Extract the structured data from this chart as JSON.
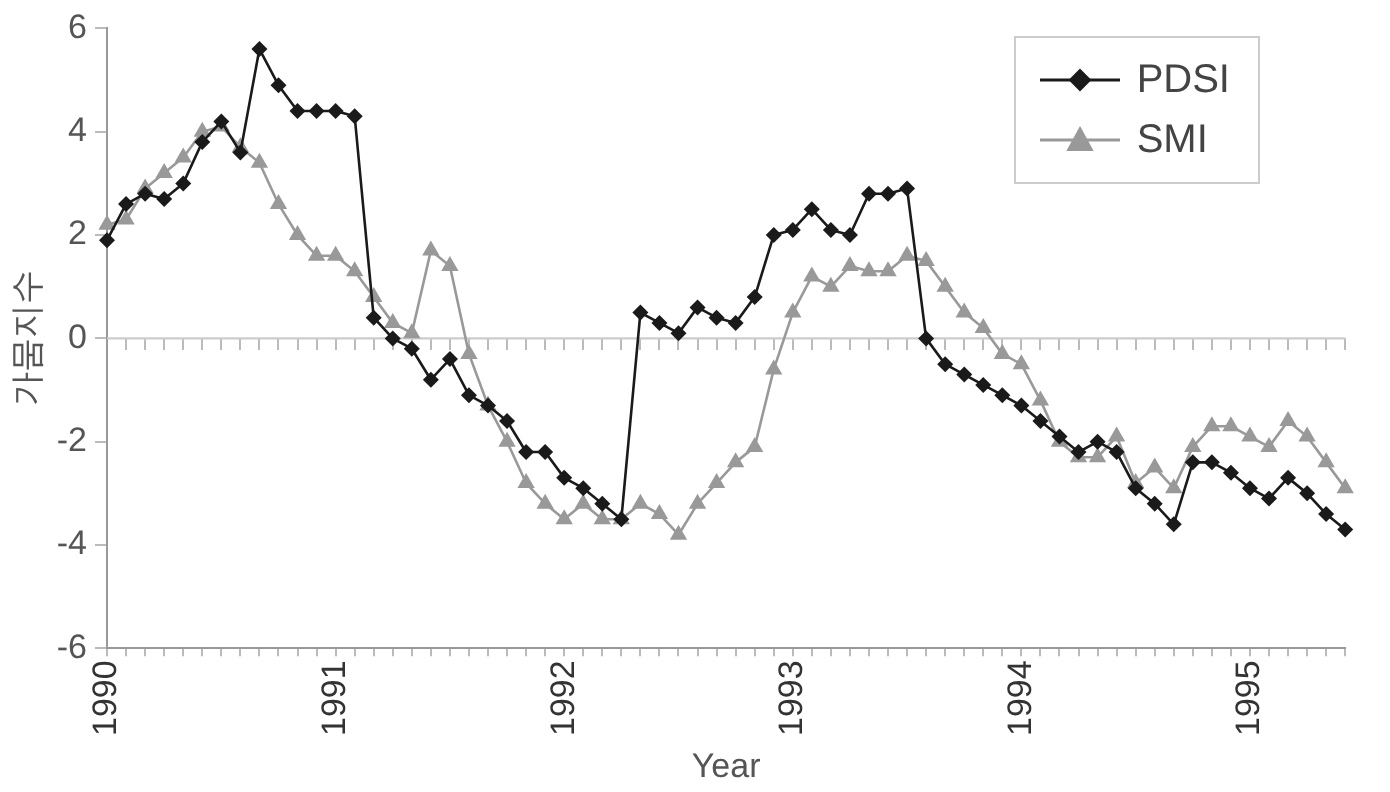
{
  "chart_data": {
    "type": "line",
    "xlabel": "Year",
    "ylabel": "가뭄지수",
    "categories": [
      "1990",
      null,
      null,
      null,
      null,
      null,
      null,
      null,
      null,
      null,
      null,
      null,
      "1991",
      null,
      null,
      null,
      null,
      null,
      null,
      null,
      null,
      null,
      null,
      null,
      "1992",
      null,
      null,
      null,
      null,
      null,
      null,
      null,
      null,
      null,
      null,
      null,
      "1993",
      null,
      null,
      null,
      null,
      null,
      null,
      null,
      null,
      null,
      null,
      null,
      "1994",
      null,
      null,
      null,
      null,
      null,
      null,
      null,
      null,
      null,
      null,
      null,
      "1995",
      null,
      null,
      null,
      null,
      null
    ],
    "ref_lines": [
      {
        "axis": "y",
        "value": 0,
        "color": "#cccccc"
      }
    ],
    "ylim": [
      -6,
      6
    ],
    "yticks": [
      -6,
      -4,
      -2,
      0,
      2,
      4,
      6
    ],
    "grid": false,
    "legend": "top right",
    "line_style": "solid",
    "series": [
      {
        "name": "PDSI",
        "color": "#1a1a1a",
        "marker": "diamond",
        "values": [
          1.9,
          2.6,
          2.8,
          2.7,
          3.0,
          3.8,
          4.2,
          3.6,
          5.6,
          4.9,
          4.4,
          4.4,
          4.4,
          4.3,
          0.4,
          0.0,
          -0.2,
          -0.8,
          -0.4,
          -1.1,
          -1.3,
          -1.6,
          -2.2,
          -2.2,
          -2.7,
          -2.9,
          -3.2,
          -3.5,
          0.5,
          0.3,
          0.1,
          0.6,
          0.4,
          0.3,
          0.8,
          2.0,
          2.1,
          2.5,
          2.1,
          2.0,
          2.8,
          2.8,
          2.9,
          0.0,
          -0.5,
          -0.7,
          -0.9,
          -1.1,
          -1.3,
          -1.6,
          -1.9,
          -2.2,
          -2.0,
          -2.2,
          -2.9,
          -3.2,
          -3.6,
          -2.4,
          -2.4,
          -2.6,
          -2.9,
          -3.1,
          -2.7,
          -3.0,
          -3.4,
          -3.7
        ]
      },
      {
        "name": "SMI",
        "color": "#999999",
        "marker": "triangle",
        "values": [
          2.2,
          2.3,
          2.9,
          3.2,
          3.5,
          4.0,
          4.1,
          3.7,
          3.4,
          2.6,
          2.0,
          1.6,
          1.6,
          1.3,
          0.8,
          0.3,
          0.1,
          1.7,
          1.4,
          -0.3,
          -1.3,
          -2.0,
          -2.8,
          -3.2,
          -3.5,
          -3.2,
          -3.5,
          -3.5,
          -3.2,
          -3.4,
          -3.8,
          -3.2,
          -2.8,
          -2.4,
          -2.1,
          -0.6,
          0.5,
          1.2,
          1.0,
          1.4,
          1.3,
          1.3,
          1.6,
          1.5,
          1.0,
          0.5,
          0.2,
          -0.3,
          -0.5,
          -1.2,
          -2.0,
          -2.3,
          -2.3,
          -1.9,
          -2.8,
          -2.5,
          -2.9,
          -2.1,
          -1.7,
          -1.7,
          -1.9,
          -2.1,
          -1.6,
          -1.9,
          -2.4,
          -2.9
        ]
      }
    ]
  }
}
